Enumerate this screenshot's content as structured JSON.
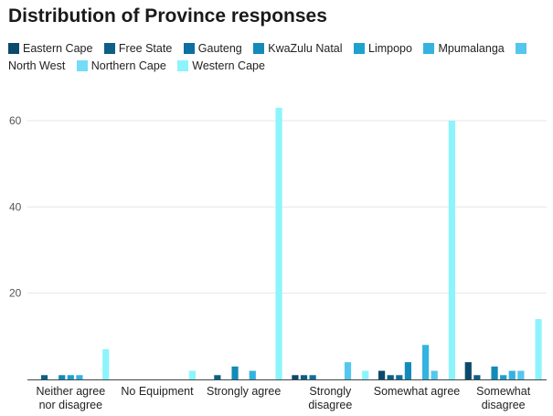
{
  "chart_data": {
    "type": "bar",
    "title": "Distribution of Province responses",
    "categories": [
      "Neither agree nor disagree",
      "No Equipment",
      "Strongly agree",
      "Strongly disagree",
      "Somewhat agree",
      "Somewhat disagree"
    ],
    "series": [
      {
        "name": "Eastern Cape",
        "color": "#0b4a6b",
        "values": [
          0,
          0,
          0,
          1,
          2,
          4
        ]
      },
      {
        "name": "Free State",
        "color": "#0d5f85",
        "values": [
          1,
          0,
          1,
          1,
          1,
          1
        ]
      },
      {
        "name": "Gauteng",
        "color": "#0f6f9e",
        "values": [
          0,
          0,
          0,
          1,
          1,
          0
        ]
      },
      {
        "name": "KwaZulu Natal",
        "color": "#138bb8",
        "values": [
          1,
          0,
          3,
          0,
          4,
          3
        ]
      },
      {
        "name": "Limpopo",
        "color": "#1fa1d0",
        "values": [
          1,
          0,
          0,
          0,
          0,
          1
        ]
      },
      {
        "name": "Mpumalanga",
        "color": "#35b3e0",
        "values": [
          1,
          0,
          2,
          0,
          8,
          2
        ]
      },
      {
        "name": "North West",
        "color": "#55c6ee",
        "values": [
          0,
          0,
          0,
          4,
          2,
          2
        ]
      },
      {
        "name": "Northern Cape",
        "color": "#74dcf6",
        "values": [
          0,
          0,
          0,
          0,
          0,
          0
        ]
      },
      {
        "name": "Western Cape",
        "color": "#8df4fc",
        "values": [
          7,
          2,
          63,
          2,
          60,
          14
        ]
      }
    ],
    "yticks": [
      20,
      40,
      60
    ],
    "ylim": [
      0,
      68
    ],
    "grid": true,
    "legend_position": "top"
  }
}
